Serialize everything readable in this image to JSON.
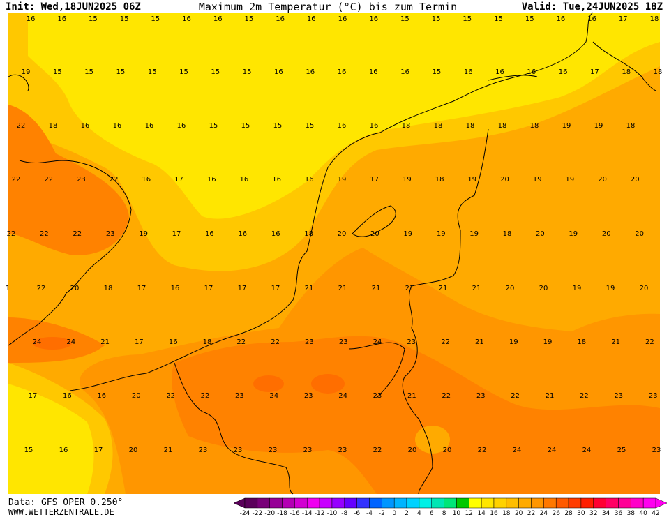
{
  "header": {
    "init": "Init: Wed,18JUN2025 06Z",
    "title": "Maximum 2m Temperatur (°C) bis zum Termin",
    "valid": "Valid: Tue,24JUN2025 18Z"
  },
  "map": {
    "rows": [
      [
        16,
        16,
        15,
        15,
        15,
        16,
        16,
        15,
        16,
        16,
        16,
        16,
        15,
        15,
        15,
        15,
        15,
        16,
        16,
        17,
        18
      ],
      [
        19,
        15,
        15,
        15,
        15,
        15,
        15,
        15,
        16,
        16,
        16,
        16,
        16,
        15,
        16,
        16,
        16,
        16,
        17,
        18,
        18
      ],
      [
        22,
        18,
        16,
        16,
        16,
        16,
        15,
        15,
        15,
        15,
        16,
        16,
        18,
        18,
        18,
        18,
        18,
        19,
        19,
        18
      ],
      [
        22,
        22,
        23,
        22,
        16,
        17,
        16,
        16,
        16,
        16,
        19,
        17,
        19,
        18,
        19,
        20,
        19,
        19,
        20,
        20
      ],
      [
        22,
        22,
        22,
        23,
        19,
        17,
        16,
        16,
        16,
        18,
        20,
        20,
        19,
        19,
        19,
        18,
        20,
        19,
        20,
        20
      ],
      [
        1,
        22,
        20,
        18,
        17,
        16,
        17,
        17,
        17,
        21,
        21,
        21,
        21,
        21,
        21,
        20,
        20,
        19,
        19,
        20
      ],
      [
        24,
        24,
        21,
        17,
        16,
        18,
        22,
        22,
        23,
        23,
        24,
        23,
        22,
        21,
        19,
        19,
        18,
        21,
        22
      ],
      [
        17,
        16,
        16,
        20,
        22,
        22,
        23,
        24,
        23,
        24,
        23,
        21,
        22,
        23,
        22,
        21,
        22,
        23,
        23
      ],
      [
        15,
        16,
        17,
        20,
        21,
        23,
        23,
        23,
        23,
        23,
        22,
        20,
        20,
        22,
        24,
        24,
        24,
        25,
        23
      ]
    ]
  },
  "colorbar": {
    "labels": [
      -24,
      -22,
      -20,
      -18,
      -16,
      -14,
      -12,
      -10,
      -8,
      -6,
      -4,
      -2,
      0,
      2,
      4,
      6,
      8,
      10,
      12,
      14,
      16,
      18,
      20,
      22,
      24,
      26,
      28,
      30,
      32,
      34,
      36,
      38,
      40,
      42
    ],
    "colors": [
      "#5a005a",
      "#780078",
      "#960096",
      "#b400b4",
      "#d200d2",
      "#f000f0",
      "#c800ff",
      "#9600ff",
      "#6400ff",
      "#3232ff",
      "#0064ff",
      "#0096ff",
      "#00b4ff",
      "#00d2ff",
      "#00f0e6",
      "#00e6b4",
      "#00e678",
      "#00c800",
      "#ffff00",
      "#ffe600",
      "#ffd200",
      "#ffbe00",
      "#ffaa00",
      "#ff9600",
      "#ff7800",
      "#ff5a00",
      "#ff3c00",
      "#ff1e00",
      "#ff0032",
      "#ff0064",
      "#ff0096",
      "#ff00c8",
      "#ff00f0"
    ]
  },
  "footer": {
    "data": "Data: GFS OPER 0.250°",
    "site": "WWW.WETTERZENTRALE.DE"
  }
}
